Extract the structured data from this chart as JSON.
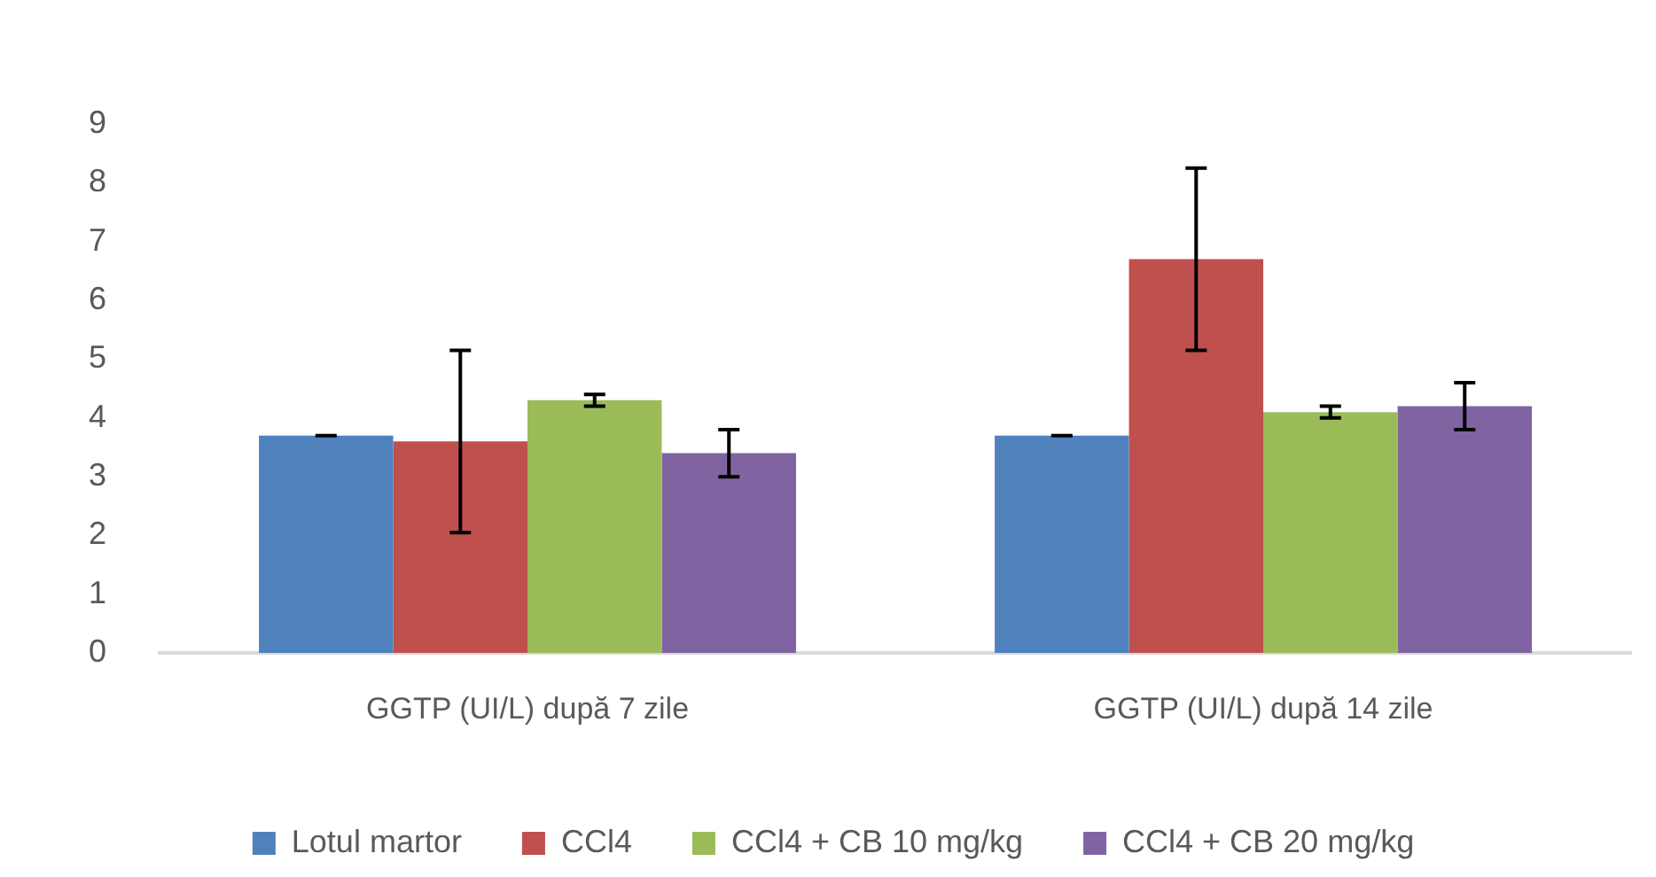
{
  "chart_data": {
    "type": "bar",
    "categories": [
      "GGTP (UI/L) după 7 zile",
      "GGTP (UI/L) după 14 zile"
    ],
    "series": [
      {
        "name": "Lotul martor",
        "color": "#4f81bd",
        "values": [
          3.7,
          3.7
        ],
        "errors": [
          0,
          0
        ]
      },
      {
        "name": "CCl4",
        "color": "#c0504d",
        "values": [
          3.6,
          6.7
        ],
        "errors": [
          1.55,
          1.55
        ]
      },
      {
        "name": "CCl4 + CB 10 mg/kg",
        "color": "#9bbb59",
        "values": [
          4.3,
          4.1
        ],
        "errors": [
          0.1,
          0.1
        ]
      },
      {
        "name": "CCl4 + CB 20 mg/kg",
        "color": "#8064a2",
        "values": [
          3.4,
          4.2
        ],
        "errors": [
          0.4,
          0.4
        ]
      }
    ],
    "ylim": [
      0,
      9
    ],
    "yticks": [
      0,
      1,
      2,
      3,
      4,
      5,
      6,
      7,
      8,
      9
    ],
    "grid": false,
    "legend": "bottom"
  }
}
